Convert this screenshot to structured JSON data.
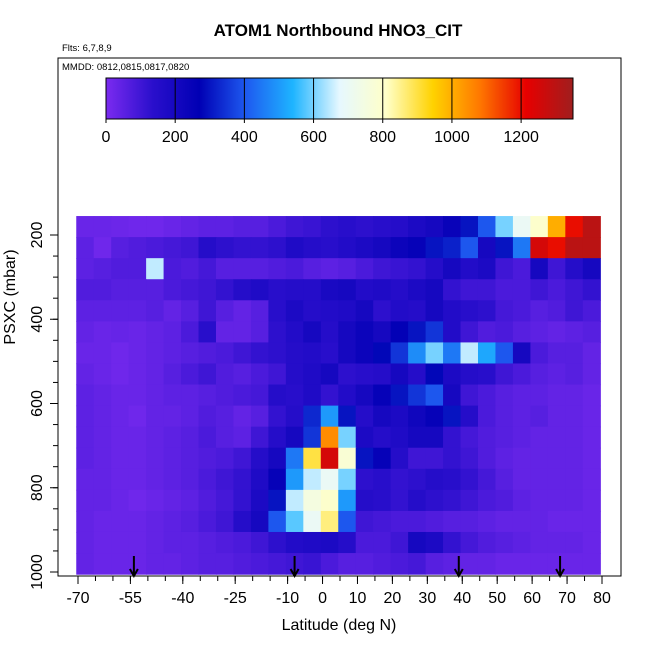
{
  "chart_data": {
    "type": "heatmap",
    "title": "ATOM1 Northbound HNO3_CIT",
    "flights_label": "Flts: 6,7,8,9",
    "dates_label": "MMDD: 0812,0815,0817,0820",
    "xlabel": "Latitude (deg N)",
    "ylabel": "PSXC (mbar)",
    "xlim": [
      -70,
      80
    ],
    "ylim": [
      1000,
      100
    ],
    "x_ticks": [
      -70,
      -55,
      -40,
      -25,
      -10,
      0,
      10,
      20,
      30,
      40,
      50,
      60,
      70,
      80
    ],
    "x_tick_labels": [
      "-70",
      "-55",
      "-40",
      "-25",
      "-10",
      "0",
      "10",
      "20",
      "30",
      "40",
      "50",
      "60",
      "70",
      "80"
    ],
    "y_ticks": [
      200,
      400,
      600,
      800,
      1000
    ],
    "y_tick_labels": [
      "200",
      "400",
      "600",
      "800",
      "1000"
    ],
    "colorbar": {
      "min": 0,
      "max": 1350,
      "ticks": [
        0,
        200,
        400,
        600,
        800,
        1000,
        1200
      ],
      "tick_labels": [
        "0",
        "200",
        "400",
        "600",
        "800",
        "1000",
        "1200"
      ],
      "stops": [
        "#7b2bf0",
        "#2a0fcc",
        "#0000b4",
        "#1e5af0",
        "#1eb4ff",
        "#e6f8ff",
        "#ffffc8",
        "#ffd200",
        "#ff7800",
        "#e60000",
        "#a01e1e"
      ]
    },
    "grid": false,
    "flight_profile_markers_lat": [
      -54,
      -8,
      39,
      68
    ],
    "pressure_levels": [
      180,
      230,
      280,
      330,
      380,
      430,
      480,
      530,
      580,
      630,
      680,
      730,
      780,
      830,
      880,
      930,
      980
    ],
    "lat_bins": [
      -68,
      -63,
      -58,
      -53,
      -48,
      -43,
      -38,
      -33,
      -28,
      -23,
      -18,
      -13,
      -8,
      -3,
      2,
      7,
      12,
      17,
      22,
      27,
      32,
      37,
      42,
      47,
      52,
      57,
      62,
      67,
      72,
      77
    ],
    "values": [
      [
        30,
        30,
        25,
        20,
        20,
        30,
        40,
        50,
        50,
        60,
        60,
        80,
        100,
        110,
        130,
        140,
        130,
        140,
        150,
        180,
        200,
        240,
        300,
        400,
        600,
        700,
        800,
        1000,
        1200,
        1300
      ],
      [
        50,
        20,
        60,
        70,
        80,
        90,
        100,
        150,
        130,
        120,
        120,
        130,
        170,
        150,
        140,
        160,
        180,
        200,
        230,
        250,
        300,
        320,
        400,
        200,
        300,
        450,
        1250,
        1200,
        1300,
        1300
      ],
      [
        50,
        60,
        70,
        70,
        650,
        80,
        70,
        90,
        60,
        60,
        60,
        70,
        80,
        60,
        50,
        60,
        80,
        100,
        110,
        120,
        150,
        200,
        160,
        180,
        100,
        80,
        200,
        100,
        150,
        200
      ],
      [
        70,
        70,
        60,
        60,
        60,
        80,
        90,
        100,
        120,
        150,
        170,
        140,
        150,
        150,
        190,
        200,
        160,
        170,
        150,
        180,
        200,
        120,
        100,
        100,
        80,
        80,
        100,
        80,
        100,
        120
      ],
      [
        50,
        50,
        50,
        50,
        60,
        40,
        60,
        100,
        60,
        40,
        60,
        140,
        180,
        150,
        160,
        170,
        200,
        130,
        160,
        150,
        200,
        160,
        140,
        130,
        90,
        80,
        60,
        70,
        100,
        80
      ],
      [
        40,
        30,
        35,
        30,
        40,
        50,
        80,
        140,
        40,
        40,
        60,
        130,
        160,
        200,
        150,
        200,
        230,
        200,
        260,
        300,
        350,
        160,
        100,
        70,
        80,
        60,
        50,
        40,
        50,
        60
      ],
      [
        30,
        30,
        20,
        30,
        40,
        50,
        60,
        70,
        80,
        100,
        120,
        130,
        150,
        160,
        140,
        200,
        230,
        280,
        350,
        480,
        600,
        450,
        650,
        520,
        400,
        200,
        80,
        60,
        60,
        40
      ],
      [
        40,
        30,
        20,
        30,
        40,
        60,
        80,
        100,
        70,
        60,
        80,
        100,
        150,
        170,
        200,
        130,
        140,
        150,
        200,
        150,
        280,
        180,
        150,
        140,
        100,
        80,
        60,
        50,
        60,
        40
      ],
      [
        50,
        40,
        30,
        30,
        40,
        50,
        50,
        60,
        70,
        80,
        90,
        150,
        140,
        170,
        120,
        160,
        200,
        250,
        300,
        350,
        400,
        200,
        100,
        80,
        60,
        50,
        50,
        40,
        40,
        30
      ],
      [
        50,
        40,
        30,
        20,
        40,
        40,
        50,
        70,
        60,
        40,
        60,
        120,
        150,
        330,
        500,
        300,
        150,
        200,
        180,
        220,
        250,
        300,
        150,
        80,
        60,
        50,
        60,
        40,
        40,
        30
      ],
      [
        50,
        40,
        30,
        30,
        40,
        50,
        60,
        80,
        60,
        50,
        100,
        150,
        200,
        350,
        1050,
        600,
        180,
        150,
        170,
        200,
        200,
        120,
        90,
        70,
        60,
        50,
        40,
        40,
        40,
        30
      ],
      [
        50,
        40,
        30,
        30,
        40,
        50,
        60,
        70,
        80,
        100,
        150,
        200,
        450,
        900,
        1250,
        780,
        300,
        250,
        150,
        100,
        100,
        120,
        100,
        70,
        50,
        40,
        40,
        40,
        40,
        30
      ],
      [
        40,
        40,
        30,
        30,
        40,
        50,
        60,
        80,
        100,
        120,
        170,
        250,
        500,
        650,
        700,
        600,
        130,
        140,
        120,
        130,
        150,
        140,
        120,
        90,
        60,
        40,
        40,
        40,
        40,
        30
      ],
      [
        40,
        40,
        30,
        20,
        30,
        40,
        50,
        70,
        90,
        120,
        180,
        300,
        650,
        750,
        800,
        500,
        150,
        140,
        120,
        150,
        130,
        120,
        100,
        80,
        70,
        50,
        40,
        40,
        40,
        30
      ],
      [
        40,
        30,
        30,
        30,
        40,
        50,
        60,
        80,
        100,
        150,
        200,
        400,
        580,
        700,
        860,
        400,
        100,
        90,
        80,
        80,
        70,
        60,
        60,
        50,
        40,
        40,
        40,
        30,
        30,
        30
      ],
      [
        40,
        30,
        30,
        30,
        40,
        50,
        50,
        60,
        70,
        80,
        100,
        130,
        160,
        170,
        180,
        150,
        80,
        80,
        100,
        200,
        180,
        120,
        90,
        70,
        60,
        50,
        40,
        40,
        40,
        30
      ],
      [
        40,
        30,
        30,
        30,
        40,
        40,
        50,
        60,
        60,
        70,
        80,
        90,
        100,
        110,
        80,
        60,
        60,
        70,
        80,
        90,
        60,
        50,
        40,
        40,
        30,
        30,
        30,
        30,
        30,
        30
      ]
    ]
  }
}
